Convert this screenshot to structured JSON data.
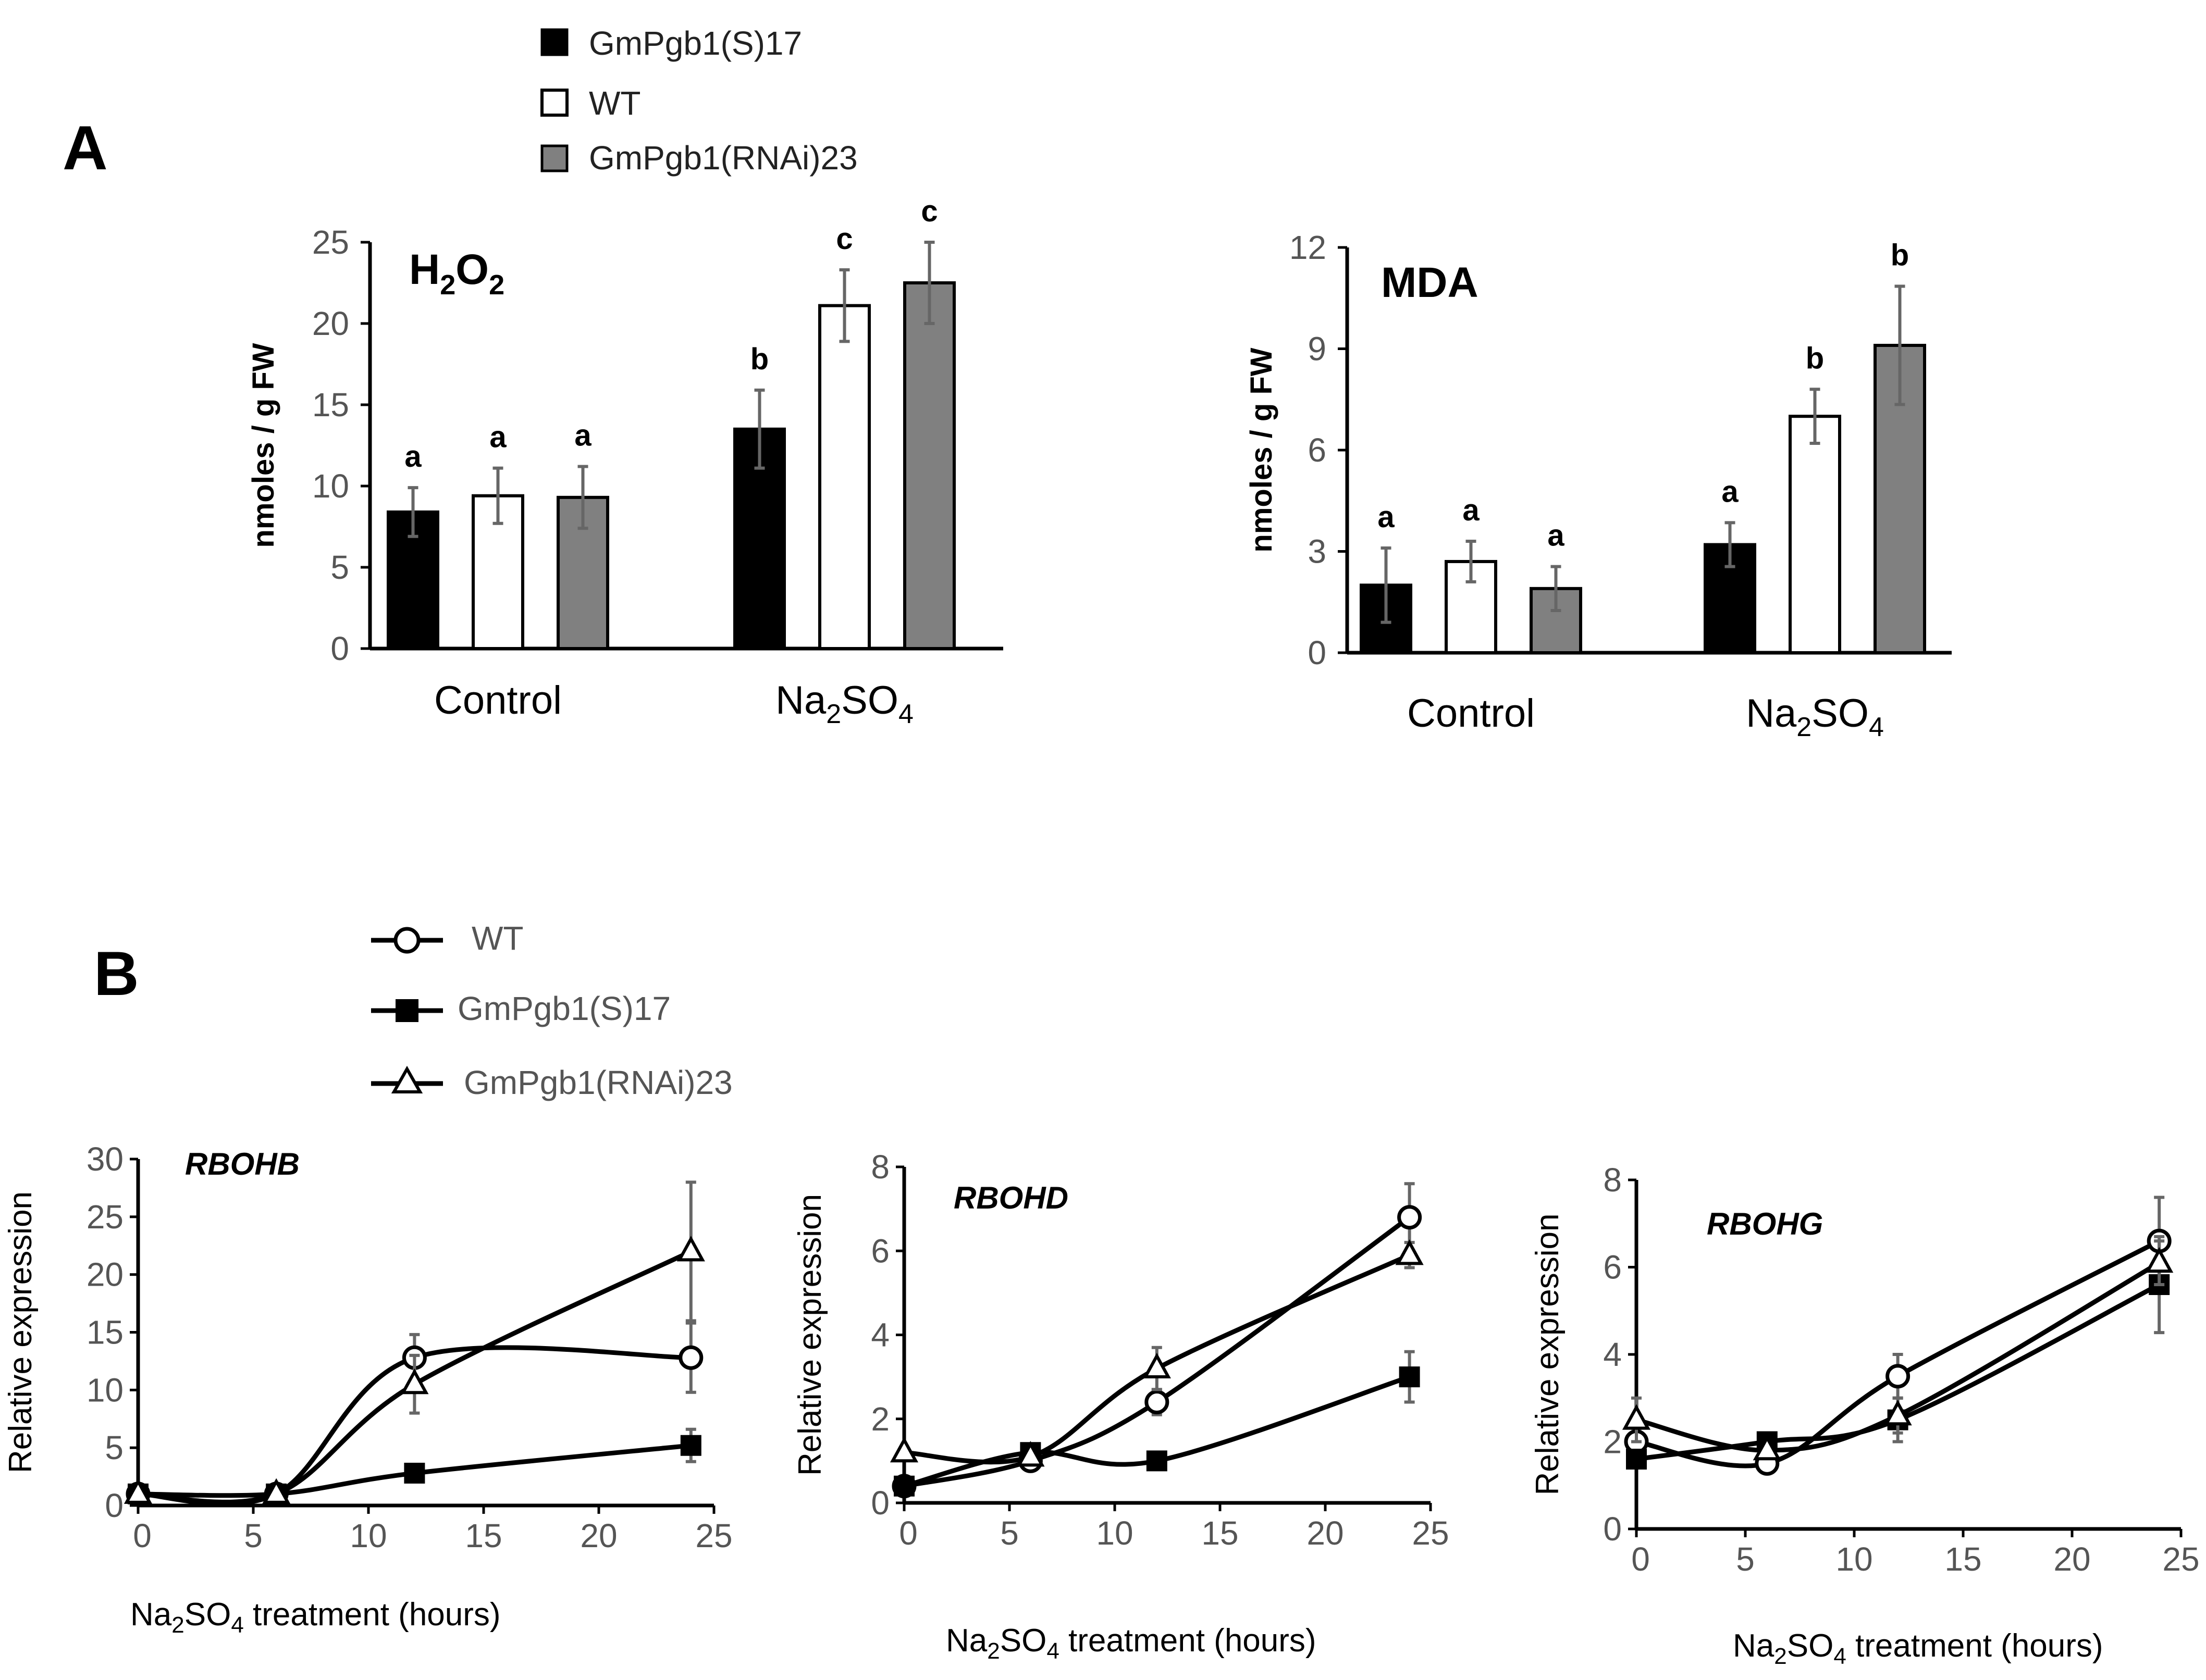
{
  "figure": {
    "panel_a_label": "A",
    "panel_b_label": "B"
  },
  "colors": {
    "black": "#000000",
    "white": "#ffffff",
    "gray": "#808080"
  },
  "legend_a": {
    "items": [
      {
        "label": "GmPgb1(S)17",
        "color": "#000000"
      },
      {
        "label": "WT",
        "color": "#ffffff"
      },
      {
        "label": "GmPgb1(RNAi)23",
        "color": "#808080"
      }
    ]
  },
  "legend_b": {
    "items": [
      {
        "label": "WT",
        "marker": "circle-open"
      },
      {
        "label": "GmPgb1(S)17",
        "marker": "square-filled"
      },
      {
        "label": "GmPgb1(RNAi)23",
        "marker": "triangle-open"
      }
    ]
  },
  "chart_data": [
    {
      "id": "h2o2",
      "type": "bar",
      "title": "H₂O₂",
      "title_main": "H",
      "title_sub1": "2",
      "title_mid": "O",
      "title_sub2": "2",
      "ylabel": "nmoles / g FW",
      "ylim": [
        0,
        25
      ],
      "yticks": [
        0,
        5,
        10,
        15,
        20,
        25
      ],
      "categories": [
        "Control",
        "Na₂SO₄"
      ],
      "cat_parts": [
        {
          "main": "Control",
          "sub": "",
          "tail": ""
        },
        {
          "main": "Na",
          "sub": "2",
          "tail": "SO",
          "sub2": "4"
        }
      ],
      "series": [
        {
          "name": "GmPgb1(S)17",
          "values": [
            8.4,
            13.5
          ],
          "errors": [
            1.5,
            2.4
          ],
          "letters": [
            "a",
            "b"
          ]
        },
        {
          "name": "WT",
          "values": [
            9.4,
            21.1
          ],
          "errors": [
            1.7,
            2.2
          ],
          "letters": [
            "a",
            "c"
          ]
        },
        {
          "name": "GmPgb1(RNAi)23",
          "values": [
            9.3,
            22.5
          ],
          "errors": [
            1.9,
            2.5
          ],
          "letters": [
            "a",
            "c"
          ]
        }
      ]
    },
    {
      "id": "mda",
      "type": "bar",
      "title": "MDA",
      "ylabel": "nmoles / g FW",
      "ylim": [
        0,
        12
      ],
      "yticks": [
        0,
        3,
        6,
        9,
        12
      ],
      "categories": [
        "Control",
        "Na₂SO₄"
      ],
      "series": [
        {
          "name": "GmPgb1(S)17",
          "values": [
            2.0,
            3.2
          ],
          "errors": [
            1.1,
            0.65
          ],
          "letters": [
            "a",
            "a"
          ]
        },
        {
          "name": "WT",
          "values": [
            2.7,
            7.0
          ],
          "errors": [
            0.6,
            0.8
          ],
          "letters": [
            "a",
            "b"
          ]
        },
        {
          "name": "GmPgb1(RNAi)23",
          "values": [
            1.9,
            9.1
          ],
          "errors": [
            0.65,
            1.75
          ],
          "letters": [
            "a",
            "b"
          ]
        }
      ]
    },
    {
      "id": "rbohb",
      "type": "line",
      "title": "RBOHB",
      "ylabel": "Relative expression",
      "xlabel": "Na₂SO₄ treatment (hours)",
      "xlim": [
        0,
        25
      ],
      "ylim": [
        0,
        30
      ],
      "xticks": [
        0,
        5,
        10,
        15,
        20,
        25
      ],
      "yticks": [
        0,
        5,
        10,
        15,
        20,
        25,
        30
      ],
      "x": [
        0,
        6,
        12,
        24
      ],
      "series": [
        {
          "name": "WT",
          "marker": "circle-open",
          "values": [
            1.0,
            1.0,
            12.8,
            12.8
          ],
          "errors": [
            0,
            0,
            2.0,
            3.0
          ]
        },
        {
          "name": "GmPgb1(S)17",
          "marker": "square-filled",
          "values": [
            1.0,
            1.0,
            2.8,
            5.2
          ],
          "errors": [
            0,
            0,
            0,
            1.4
          ]
        },
        {
          "name": "GmPgb1(RNAi)23",
          "marker": "triangle-open",
          "values": [
            1.0,
            1.0,
            10.5,
            22.0
          ],
          "errors": [
            0,
            0,
            2.5,
            6.0
          ]
        }
      ]
    },
    {
      "id": "rbohd",
      "type": "line",
      "title": "RBOHD",
      "ylabel": "Relative expression",
      "xlabel": "Na₂SO₄ treatment (hours)",
      "xlim": [
        0,
        25
      ],
      "ylim": [
        0,
        8
      ],
      "xticks": [
        0,
        5,
        10,
        15,
        20,
        25
      ],
      "yticks": [
        0,
        2,
        4,
        6,
        8
      ],
      "x": [
        0,
        6,
        12,
        24
      ],
      "series": [
        {
          "name": "WT",
          "marker": "circle-open",
          "values": [
            0.4,
            1.0,
            2.4,
            6.8
          ],
          "errors": [
            0,
            0.15,
            0.3,
            0.8
          ]
        },
        {
          "name": "GmPgb1(S)17",
          "marker": "square-filled",
          "values": [
            0.4,
            1.2,
            1.0,
            3.0
          ],
          "errors": [
            0,
            0.2,
            0,
            0.6
          ]
        },
        {
          "name": "GmPgb1(RNAi)23",
          "marker": "triangle-open",
          "values": [
            1.2,
            1.1,
            3.2,
            5.9
          ],
          "errors": [
            0,
            0,
            0.5,
            0.3
          ]
        }
      ]
    },
    {
      "id": "rbohg",
      "type": "line",
      "title": "RBOHG",
      "ylabel": "Relative expression",
      "xlabel": "Na₂SO₄ treatment (hours)",
      "xlim": [
        0,
        25
      ],
      "ylim": [
        0,
        8
      ],
      "xticks": [
        0,
        5,
        10,
        15,
        20,
        25
      ],
      "yticks": [
        0,
        2,
        4,
        6,
        8
      ],
      "x": [
        0,
        6,
        12,
        24
      ],
      "series": [
        {
          "name": "WT",
          "marker": "circle-open",
          "values": [
            2.0,
            1.5,
            3.5,
            6.6
          ],
          "errors": [
            0.3,
            0,
            0.5,
            1.0
          ]
        },
        {
          "name": "GmPgb1(S)17",
          "marker": "square-filled",
          "values": [
            1.6,
            2.0,
            2.5,
            5.6
          ],
          "errors": [
            0,
            0,
            0.5,
            1.1
          ]
        },
        {
          "name": "GmPgb1(RNAi)23",
          "marker": "triangle-open",
          "values": [
            2.5,
            1.8,
            2.6,
            6.1
          ],
          "errors": [
            0.5,
            0,
            0.4,
            0.5
          ]
        }
      ]
    }
  ]
}
